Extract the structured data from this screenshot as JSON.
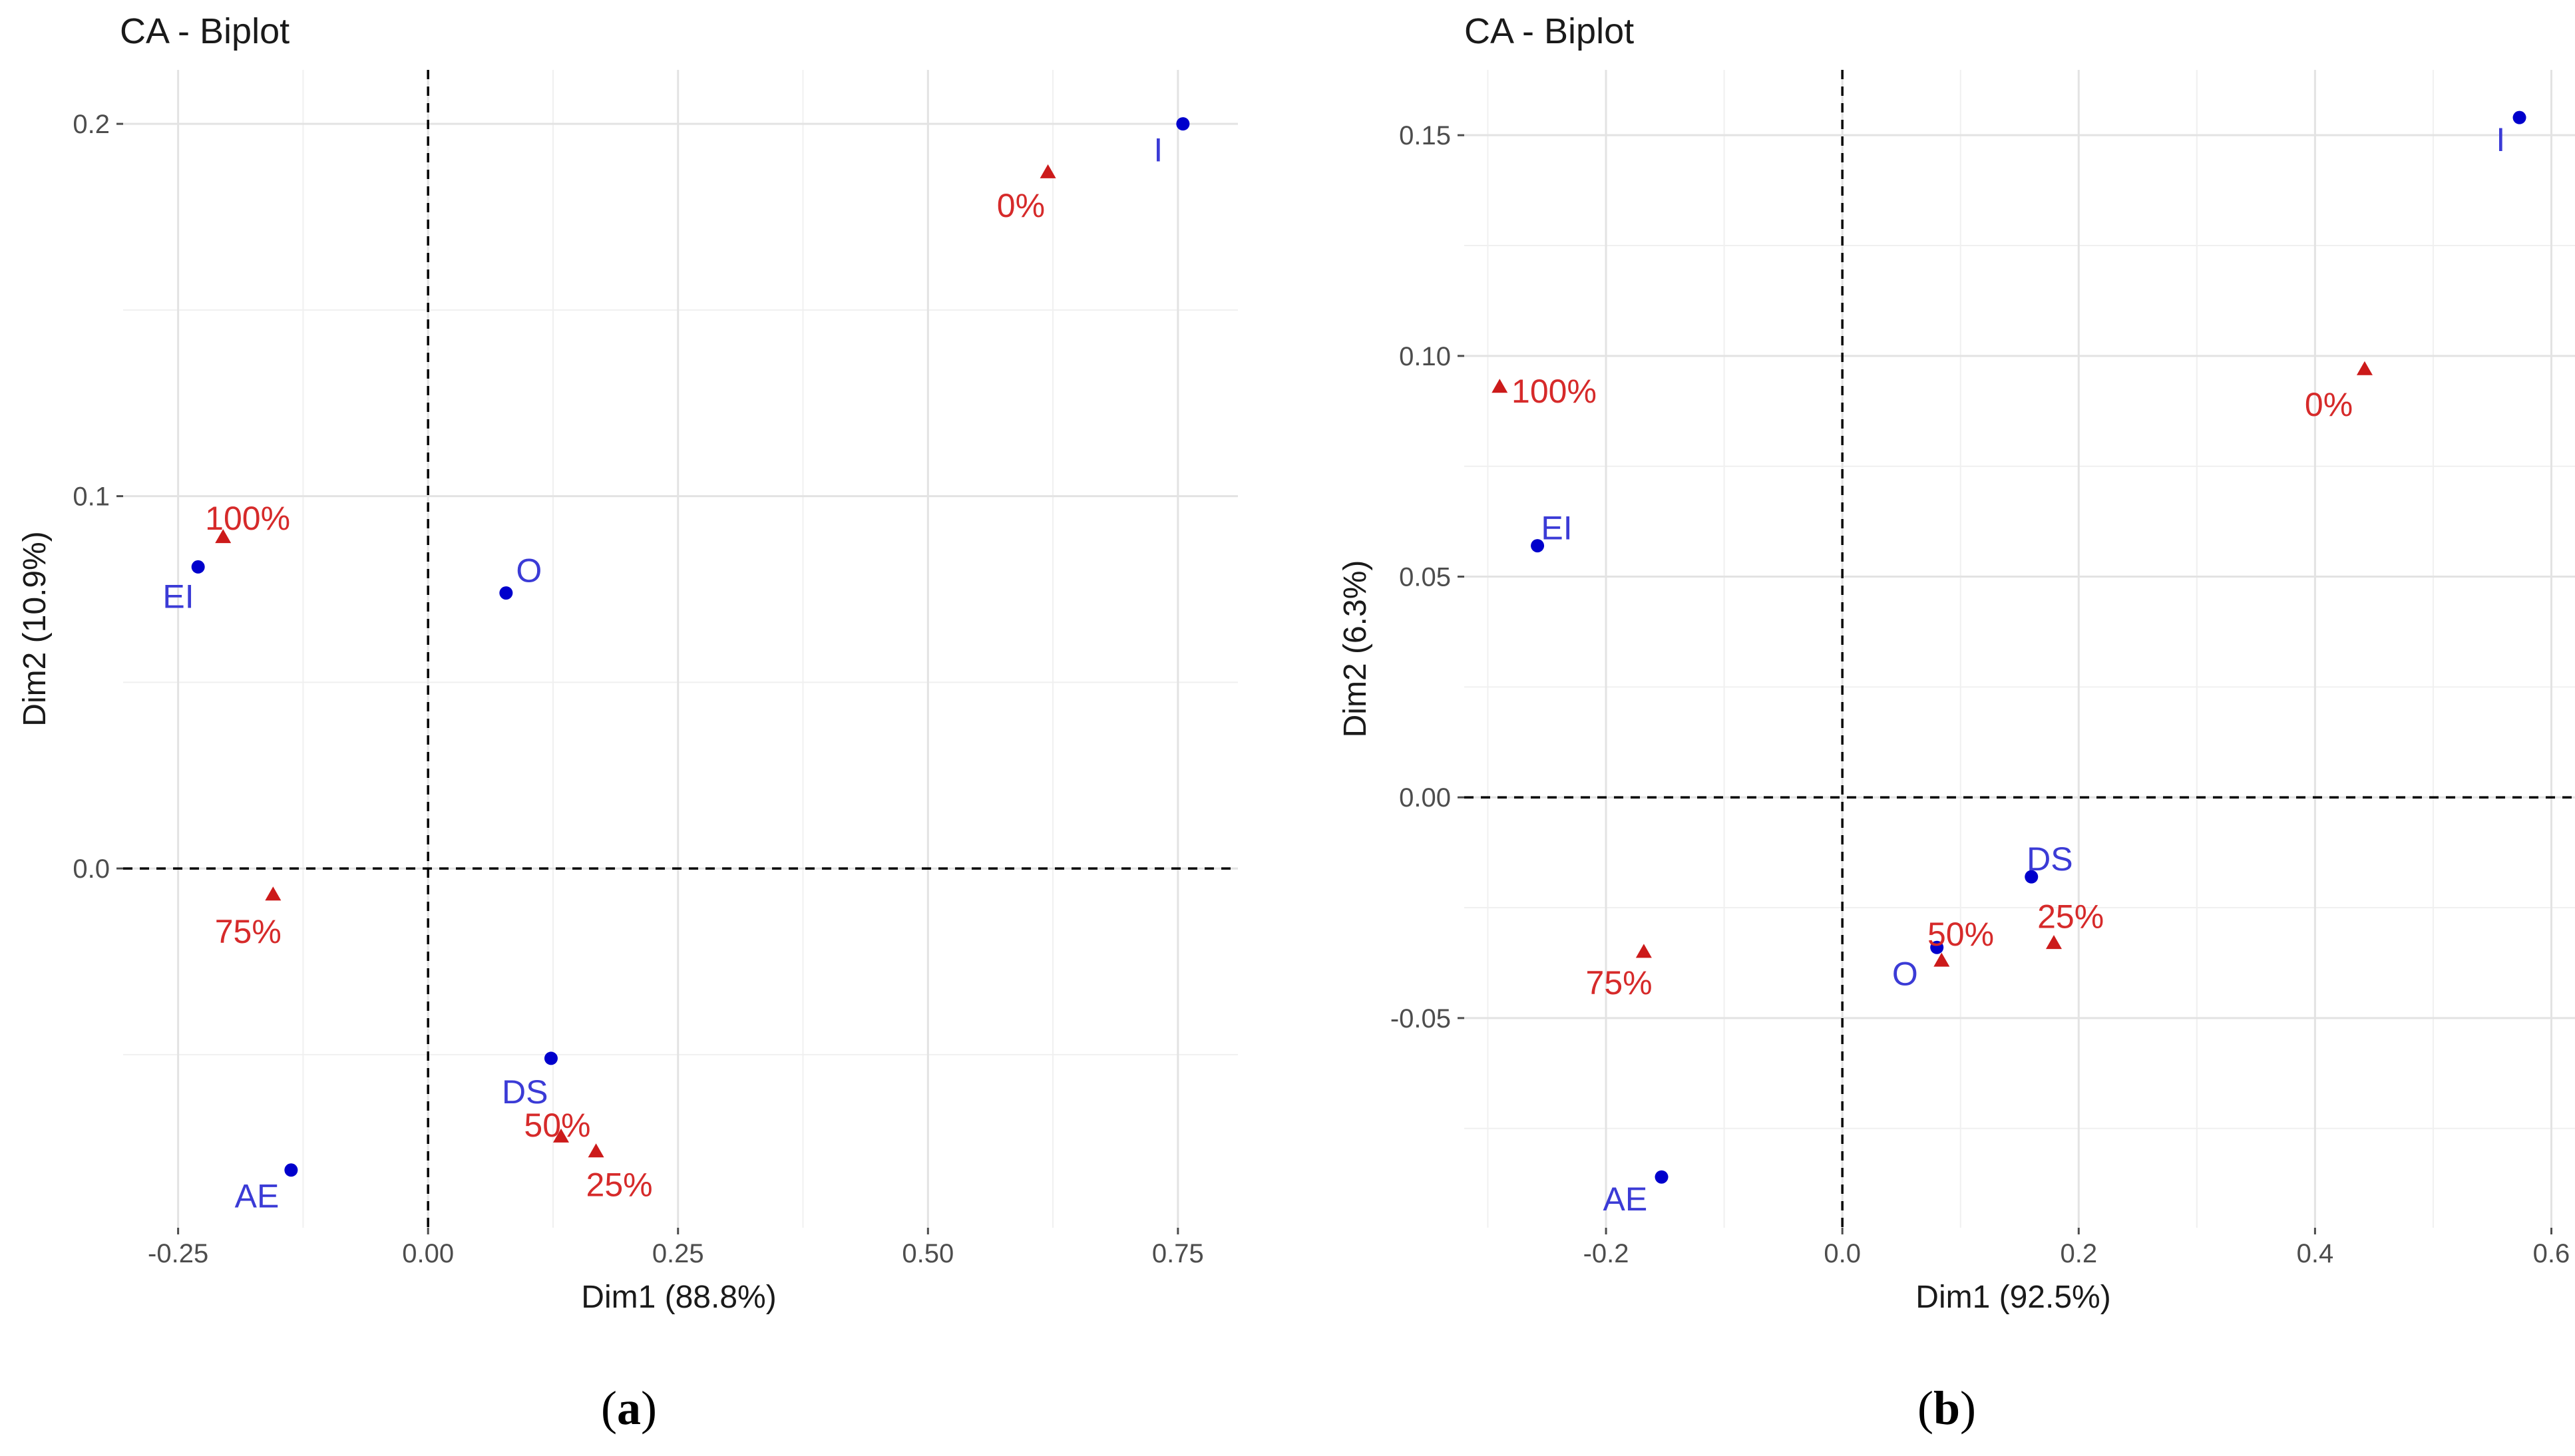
{
  "chart_data": [
    {
      "type": "scatter",
      "title": "CA - Biplot",
      "xlabel": "Dim1 (88.8%)",
      "ylabel": "Dim2 (10.9%)",
      "xlim": [
        -0.305,
        0.81
      ],
      "ylim": [
        -0.0965,
        0.2145
      ],
      "xticks": [
        -0.25,
        0,
        0.25,
        0.5,
        0.75
      ],
      "xtick_labels": [
        "-0.25",
        "0.00",
        "0.25",
        "0.50",
        "0.75"
      ],
      "xminor": [
        -0.125,
        0.125,
        0.375,
        0.625
      ],
      "yticks": [
        0,
        0.1,
        0.2
      ],
      "ytick_labels": [
        "0.0",
        "0.1",
        "0.2"
      ],
      "yminor": [
        -0.05,
        0.05,
        0.15
      ],
      "grid": true,
      "series": [
        {
          "name": "rows",
          "marker": "circle",
          "color": "#0000cc",
          "label_color": "#3b3bd6",
          "points": [
            {
              "label": "I",
              "x": 0.755,
              "y": 0.2,
              "label_dx": -0.02,
              "label_dy": -0.007,
              "anchor": "end"
            },
            {
              "label": "EI",
              "x": -0.23,
              "y": 0.081,
              "label_dx": -0.004,
              "label_dy": -0.008,
              "anchor": "end"
            },
            {
              "label": "O",
              "x": 0.078,
              "y": 0.074,
              "label_dx": 0.01,
              "label_dy": 0.006,
              "anchor": "start"
            },
            {
              "label": "DS",
              "x": 0.123,
              "y": -0.051,
              "label_dx": -0.003,
              "label_dy": -0.009,
              "anchor": "end"
            },
            {
              "label": "AE",
              "x": -0.137,
              "y": -0.081,
              "label_dx": -0.012,
              "label_dy": -0.007,
              "anchor": "end"
            }
          ]
        },
        {
          "name": "columns",
          "marker": "triangle",
          "color": "#cc1a1a",
          "label_color": "#d62a2a",
          "points": [
            {
              "label": "0%",
              "x": 0.62,
              "y": 0.187,
              "label_dx": -0.003,
              "label_dy": -0.009,
              "anchor": "end"
            },
            {
              "label": "100%",
              "x": -0.205,
              "y": 0.089,
              "label_dx": -0.018,
              "label_dy": 0.005,
              "anchor": "start"
            },
            {
              "label": "75%",
              "x": -0.155,
              "y": -0.007,
              "label_dx": -0.025,
              "label_dy": -0.01,
              "anchor": "middle"
            },
            {
              "label": "50%",
              "x": 0.133,
              "y": -0.072,
              "label_dx": -0.037,
              "label_dy": 0.003,
              "anchor": "start"
            },
            {
              "label": "25%",
              "x": 0.168,
              "y": -0.076,
              "label_dx": -0.01,
              "label_dy": -0.009,
              "anchor": "start"
            }
          ]
        }
      ]
    },
    {
      "type": "scatter",
      "title": "CA - Biplot",
      "xlabel": "Dim1 (92.5%)",
      "ylabel": "Dim2 (6.3%)",
      "xlim": [
        -0.32,
        0.62
      ],
      "ylim": [
        -0.0975,
        0.1648
      ],
      "xticks": [
        -0.2,
        0,
        0.2,
        0.4,
        0.6
      ],
      "xtick_labels": [
        "-0.2",
        "0.0",
        "0.2",
        "0.4",
        "0.6"
      ],
      "xminor": [
        -0.3,
        -0.1,
        0.1,
        0.3,
        0.5
      ],
      "yticks": [
        -0.05,
        0,
        0.05,
        0.1,
        0.15
      ],
      "ytick_labels": [
        "-0.05",
        "0.00",
        "0.05",
        "0.10",
        "0.15"
      ],
      "yminor": [
        -0.075,
        -0.025,
        0.025,
        0.075,
        0.125
      ],
      "grid": true,
      "series": [
        {
          "name": "rows",
          "marker": "circle",
          "color": "#0000cc",
          "label_color": "#3b3bd6",
          "points": [
            {
              "label": "I",
              "x": 0.573,
              "y": 0.154,
              "label_dx": -0.012,
              "label_dy": -0.005,
              "anchor": "end"
            },
            {
              "label": "EI",
              "x": -0.258,
              "y": 0.057,
              "label_dx": 0.003,
              "label_dy": 0.004,
              "anchor": "start"
            },
            {
              "label": "DS",
              "x": 0.16,
              "y": -0.018,
              "label_dx": -0.004,
              "label_dy": 0.004,
              "anchor": "start"
            },
            {
              "label": "O",
              "x": 0.08,
              "y": -0.034,
              "label_dx": -0.016,
              "label_dy": -0.006,
              "anchor": "end"
            },
            {
              "label": "AE",
              "x": -0.153,
              "y": -0.086,
              "label_dx": -0.012,
              "label_dy": -0.005,
              "anchor": "end"
            }
          ]
        },
        {
          "name": "columns",
          "marker": "triangle",
          "color": "#cc1a1a",
          "label_color": "#d62a2a",
          "points": [
            {
              "label": "0%",
              "x": 0.442,
              "y": 0.097,
              "label_dx": -0.01,
              "label_dy": -0.008,
              "anchor": "end"
            },
            {
              "label": "100%",
              "x": -0.29,
              "y": 0.093,
              "label_dx": 0.01,
              "label_dy": -0.001,
              "anchor": "start"
            },
            {
              "label": "75%",
              "x": -0.168,
              "y": -0.035,
              "label_dx": -0.021,
              "label_dy": -0.007,
              "anchor": "middle"
            },
            {
              "label": "50%",
              "x": 0.084,
              "y": -0.037,
              "label_dx": -0.012,
              "label_dy": 0.006,
              "anchor": "start"
            },
            {
              "label": "25%",
              "x": 0.179,
              "y": -0.033,
              "label_dx": -0.014,
              "label_dy": 0.006,
              "anchor": "start"
            }
          ]
        }
      ]
    }
  ],
  "captions": [
    {
      "open": "(",
      "letter": "a",
      "close": ")"
    },
    {
      "open": "(",
      "letter": "b",
      "close": ")"
    }
  ]
}
